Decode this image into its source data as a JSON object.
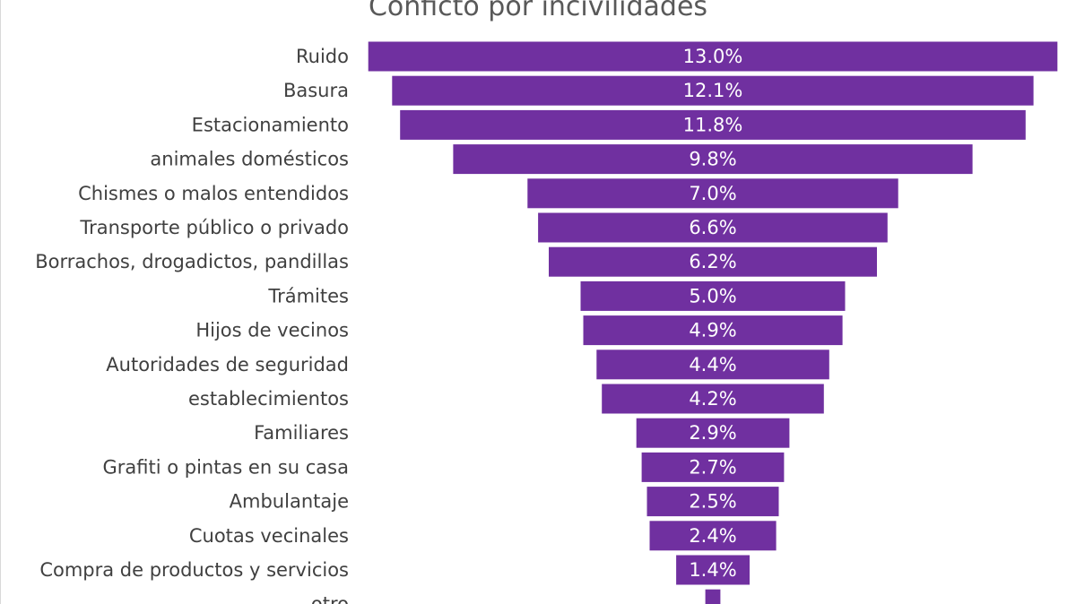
{
  "chart_data": {
    "type": "bar",
    "orientation": "horizontal",
    "style": "funnel",
    "title": "Conficto por incivilidades",
    "xlabel": "",
    "ylabel": "",
    "grid": false,
    "legend": "none",
    "bar_color": "#7030A0",
    "categories": [
      "Ruido",
      "Basura",
      "Estacionamiento",
      "animales domésticos",
      "Chismes o malos entendidos",
      "Transporte público o privado",
      "Borrachos, drogadictos, pandillas",
      "Trámites",
      "Hijos de vecinos",
      "Autoridades de seguridad",
      "establecimientos",
      "Familiares",
      "Grafiti o pintas en su casa",
      "Ambulantaje",
      "Cuotas vecinales",
      "Compra de productos y servicios",
      "otro"
    ],
    "values": [
      13.0,
      12.1,
      11.8,
      9.8,
      7.0,
      6.6,
      6.2,
      5.0,
      4.9,
      4.4,
      4.2,
      2.9,
      2.7,
      2.5,
      2.4,
      1.4,
      0.3
    ],
    "data_labels": [
      "13.0%",
      "12.1%",
      "11.8%",
      "9.8%",
      "7.0%",
      "6.6%",
      "6.2%",
      "5.0%",
      "4.9%",
      "4.4%",
      "4.2%",
      "2.9%",
      "2.7%",
      "2.5%",
      "2.4%",
      "1.4%",
      ""
    ]
  }
}
